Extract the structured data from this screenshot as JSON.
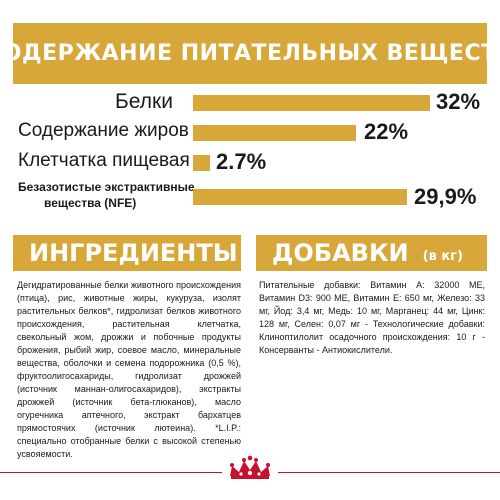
{
  "header": {
    "title": "СОДЕРЖАНИЕ ПИТАТЕЛЬНЫХ ВЕЩЕСТВ"
  },
  "nutrients": [
    {
      "label": "Белки",
      "value": "32%",
      "fraction": 0.32
    },
    {
      "label": "Содержание жиров",
      "value": "22%",
      "fraction": 0.22
    },
    {
      "label": "Клетчатка пищевая",
      "value": "2.7%",
      "fraction": 0.027
    },
    {
      "label_line1": "Безазотистые экстрактивные",
      "label_line2": "вещества (NFE)",
      "value": "29,9%",
      "fraction": 0.299
    }
  ],
  "ingredients": {
    "title": "ИНГРЕДИЕНТЫ",
    "text": "Дегидратированные белки животного происхождения (птица), рис, животные жиры, кукуруза, изолят растительных белков*, гидролизат белков животного происхождения, растительная клетчатка, свекольный жом, дрожжи и побочные продукты брожения, рыбий жир, соевое масло, минеральные вещества, оболочки и семена подорожника (0,5 %), фруктоолигосахариды, гидролизат дрожжей (источник маннан-олигосахаридов), экстракты дрожжей (источник бета-глюканов), масло огуречника аптечного, экстракт бархатцев прямостоячих (источник лютеина). *L.I.P.: специально отобранные белки с высокой степенью усвояемости."
  },
  "additives": {
    "title": "ДОБАВКИ",
    "unit": "(в кг)",
    "text": "Питательные добавки: Витамин A: 32000 МЕ, Витамин D3: 900 МЕ, Витамин E: 650 мг, Железо: 33 мг, Йод: 3,4 мг, Медь: 10 мг, Марганец: 44 мг, Цинк: 128 мг, Селен: 0,07 мг - Технологические добавки: Клиноптилолит осадочного происхождения: 10 г - Консерванты - Антиокислители."
  },
  "colors": {
    "accent": "#d8a739",
    "brand_red": "#c8102e"
  },
  "logo": {
    "name": "royal-canin-crown-icon"
  }
}
